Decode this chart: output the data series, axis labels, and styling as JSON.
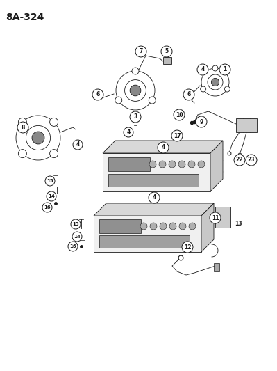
{
  "title": "8A-324",
  "bg_color": "#ffffff",
  "fig_width": 3.99,
  "fig_height": 5.33,
  "dpi": 100,
  "black": "#1a1a1a",
  "lw": 0.6
}
